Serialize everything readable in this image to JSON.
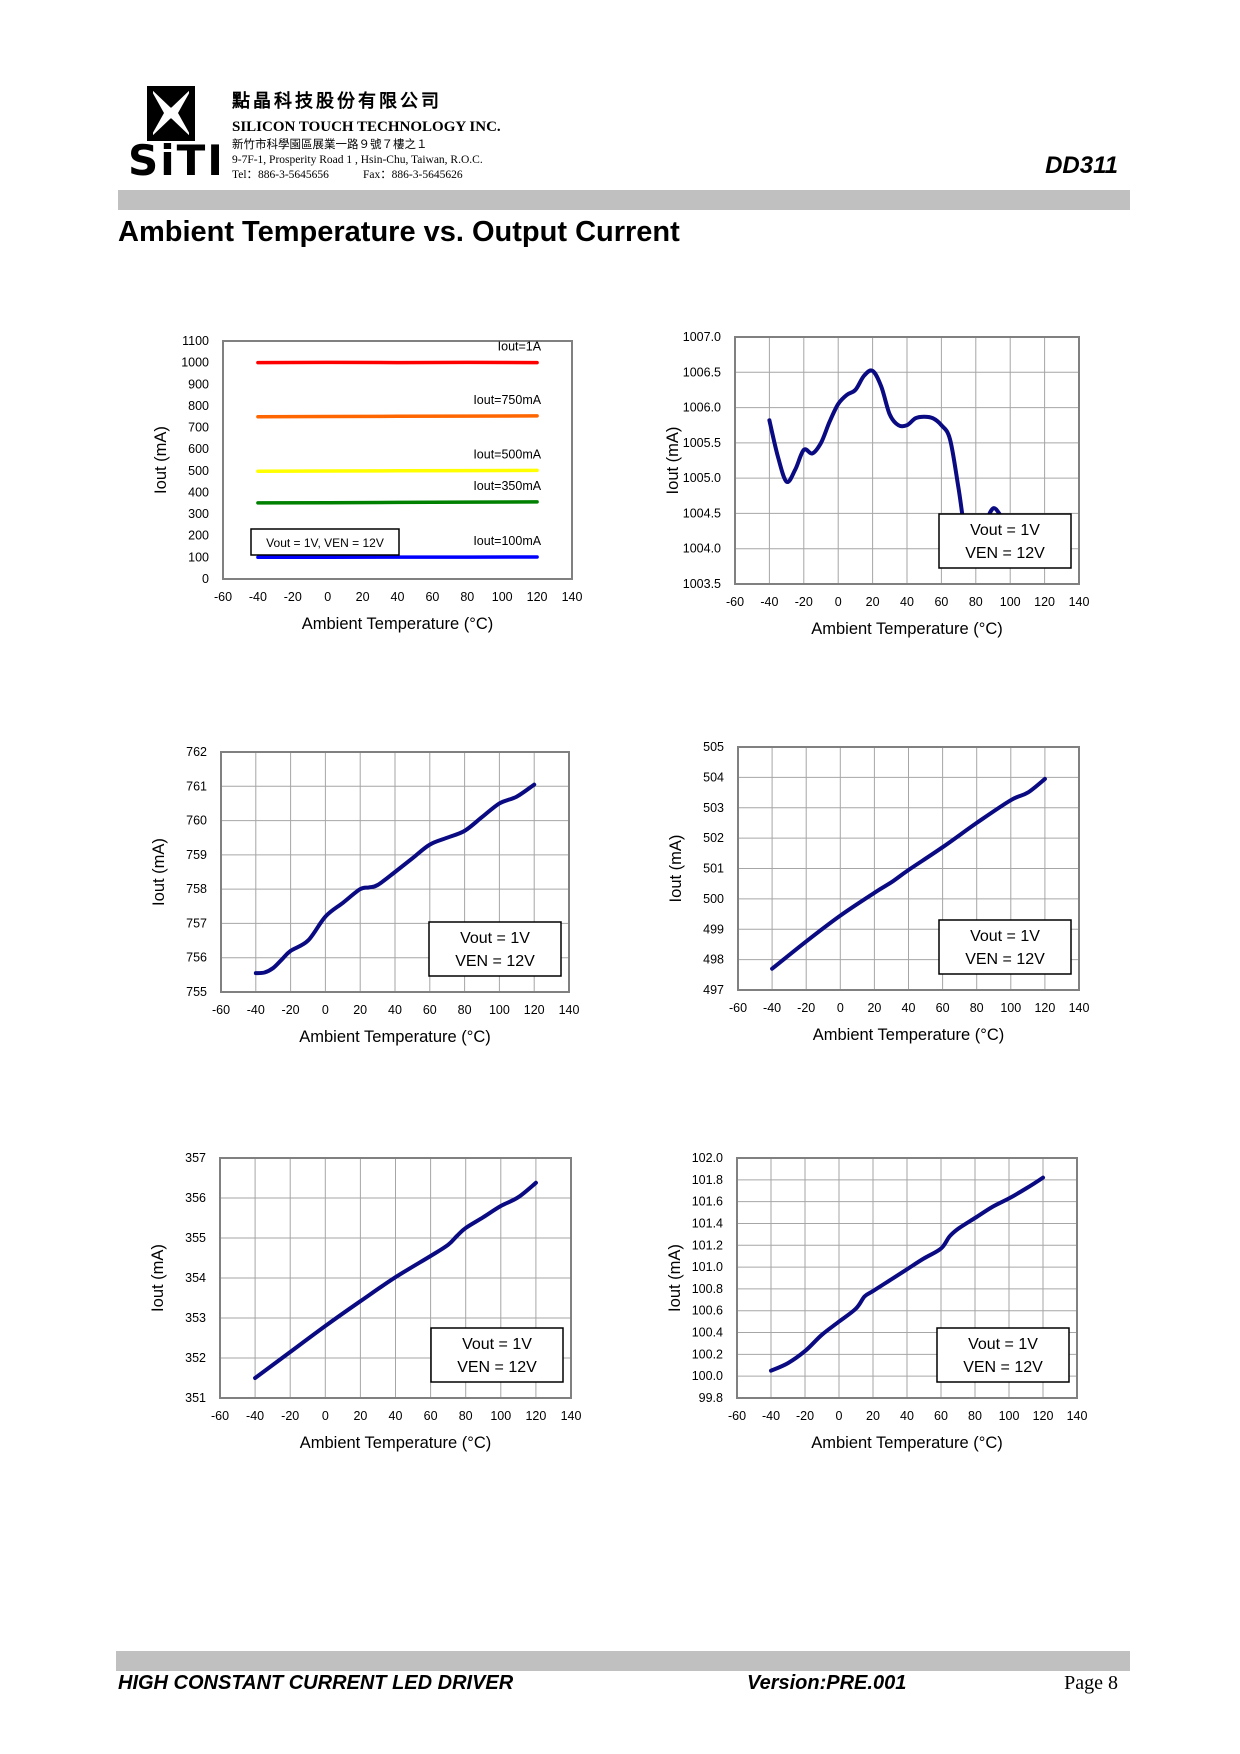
{
  "header": {
    "company_cn": "點晶科技股份有限公司",
    "company_en": "SILICON TOUCH TECHNOLOGY INC.",
    "address_cn": "新竹市科學園區展業一路９號７樓之１",
    "address_en": "9-7F-1, Prosperity Road 1 , Hsin-Chu, Taiwan, R.O.C.",
    "tel": "Tel：886-3-5645656",
    "fax": "Fax：886-3-5645626",
    "logo_text": "SiTI",
    "doc_id": "DD311"
  },
  "page_title": "Ambient Temperature vs. Output Current",
  "footer": {
    "product": "HIGH CONSTANT CURRENT LED DRIVER",
    "version": "Version:PRE.001",
    "page": "Page 8"
  },
  "colors": {
    "line": "#0a0a82",
    "grid": "#a6a6a6",
    "bar": "#c0c0c0",
    "iout_1a": "#ff0000",
    "iout_750": "#ff6600",
    "iout_500": "#ffff00",
    "iout_350": "#008000",
    "iout_100": "#0000ff"
  },
  "chart_data": [
    {
      "id": "all-currents",
      "type": "line",
      "xlabel": "Ambient Temperature (°C)",
      "ylabel": "Iout (mA)",
      "xlim": [
        -60,
        140
      ],
      "ylim": [
        0,
        1100
      ],
      "xticks": [
        -60,
        -40,
        -20,
        0,
        20,
        40,
        60,
        80,
        100,
        120,
        140
      ],
      "yticks": [
        0,
        100,
        200,
        300,
        400,
        500,
        600,
        700,
        800,
        900,
        1000,
        1100
      ],
      "ytick_labels": [
        "0",
        "100",
        "200",
        "300",
        "400",
        "500",
        "600",
        "700",
        "800",
        "900",
        "1000",
        "1100"
      ],
      "xgrid": false,
      "ygrid": false,
      "condition": [
        "Vout = 1V, VEN = 12V"
      ],
      "series": [
        {
          "name": "Iout=1A",
          "color": "#ff0000",
          "x": [
            -40,
            0,
            40,
            80,
            120
          ],
          "y": [
            1000,
            1001,
            1000,
            1001,
            1000
          ]
        },
        {
          "name": "Iout=750mA",
          "color": "#ff6600",
          "x": [
            -40,
            0,
            40,
            80,
            120
          ],
          "y": [
            750,
            751,
            752,
            753,
            754
          ]
        },
        {
          "name": "Iout=500mA",
          "color": "#ffff00",
          "x": [
            -40,
            0,
            40,
            80,
            120
          ],
          "y": [
            498,
            499,
            500,
            501,
            502
          ]
        },
        {
          "name": "Iout=350mA",
          "color": "#008000",
          "x": [
            -40,
            0,
            40,
            80,
            120
          ],
          "y": [
            351.5,
            352.8,
            354,
            355.3,
            356.3
          ]
        },
        {
          "name": "Iout=100mA",
          "color": "#0000ff",
          "x": [
            -40,
            0,
            40,
            80,
            120
          ],
          "y": [
            100.1,
            100.5,
            101,
            101.4,
            101.8
          ]
        }
      ]
    },
    {
      "id": "iout-1a",
      "type": "line",
      "xlabel": "Ambient Temperature (°C)",
      "ylabel": "Iout (mA)",
      "xlim": [
        -60,
        140
      ],
      "ylim": [
        1003.5,
        1007.0
      ],
      "xticks": [
        -60,
        -40,
        -20,
        0,
        20,
        40,
        60,
        80,
        100,
        120,
        140
      ],
      "yticks": [
        1003.5,
        1004.0,
        1004.5,
        1005.0,
        1005.5,
        1006.0,
        1006.5,
        1007.0
      ],
      "ytick_labels": [
        "1003.5",
        "1004.0",
        "1004.5",
        "1005.0",
        "1005.5",
        "1006.0",
        "1006.5",
        "1007.0"
      ],
      "xgrid": true,
      "ygrid": true,
      "condition": [
        "Vout = 1V",
        "VEN = 12V"
      ],
      "series": [
        {
          "x": [
            -40,
            -35,
            -30,
            -25,
            -20,
            -15,
            -10,
            -5,
            0,
            5,
            10,
            15,
            20,
            25,
            30,
            35,
            40,
            45,
            50,
            55,
            60,
            65,
            70,
            75,
            80,
            85,
            90,
            95,
            100,
            105,
            110,
            115,
            120
          ],
          "y": [
            1005.82,
            1005.3,
            1004.95,
            1005.12,
            1005.4,
            1005.35,
            1005.5,
            1005.8,
            1006.05,
            1006.18,
            1006.25,
            1006.45,
            1006.52,
            1006.3,
            1005.9,
            1005.75,
            1005.75,
            1005.85,
            1005.87,
            1005.85,
            1005.75,
            1005.55,
            1004.85,
            1004.05,
            1003.85,
            1004.3,
            1004.57,
            1004.45,
            1004.28,
            1004.25,
            1004.23,
            1004.1,
            1003.93
          ]
        }
      ]
    },
    {
      "id": "iout-750ma",
      "type": "line",
      "xlabel": "Ambient Temperature (°C)",
      "ylabel": "Iout (mA)",
      "xlim": [
        -60,
        140
      ],
      "ylim": [
        755,
        762
      ],
      "xticks": [
        -60,
        -40,
        -20,
        0,
        20,
        40,
        60,
        80,
        100,
        120,
        140
      ],
      "yticks": [
        755,
        756,
        757,
        758,
        759,
        760,
        761,
        762
      ],
      "ytick_labels": [
        "755",
        "756",
        "757",
        "758",
        "759",
        "760",
        "761",
        "762"
      ],
      "xgrid": true,
      "ygrid": true,
      "condition": [
        "Vout = 1V",
        "VEN = 12V"
      ],
      "series": [
        {
          "x": [
            -40,
            -35,
            -30,
            -25,
            -20,
            -10,
            0,
            10,
            20,
            25,
            30,
            40,
            50,
            60,
            70,
            80,
            90,
            100,
            110,
            120
          ],
          "y": [
            755.55,
            755.57,
            755.7,
            755.95,
            756.2,
            756.5,
            757.2,
            757.6,
            758.0,
            758.05,
            758.12,
            758.5,
            758.9,
            759.3,
            759.5,
            759.7,
            760.1,
            760.5,
            760.7,
            761.05
          ]
        }
      ]
    },
    {
      "id": "iout-500ma",
      "type": "line",
      "xlabel": "Ambient Temperature (°C)",
      "ylabel": "Iout (mA)",
      "xlim": [
        -60,
        140
      ],
      "ylim": [
        497,
        505
      ],
      "xticks": [
        -60,
        -40,
        -20,
        0,
        20,
        40,
        60,
        80,
        100,
        120,
        140
      ],
      "yticks": [
        497,
        498,
        499,
        500,
        501,
        502,
        503,
        504,
        505
      ],
      "ytick_labels": [
        "497",
        "498",
        "499",
        "500",
        "501",
        "502",
        "503",
        "504",
        "505"
      ],
      "xgrid": true,
      "ygrid": true,
      "condition": [
        "Vout = 1V",
        "VEN = 12V"
      ],
      "series": [
        {
          "x": [
            -40,
            -20,
            0,
            20,
            30,
            40,
            60,
            80,
            100,
            110,
            120
          ],
          "y": [
            497.7,
            498.6,
            499.45,
            500.2,
            500.55,
            500.95,
            501.7,
            502.5,
            503.25,
            503.5,
            503.95
          ]
        }
      ]
    },
    {
      "id": "iout-350ma",
      "type": "line",
      "xlabel": "Ambient Temperature (°C)",
      "ylabel": "Iout (mA)",
      "xlim": [
        -60,
        140
      ],
      "ylim": [
        351,
        357
      ],
      "xticks": [
        -60,
        -40,
        -20,
        0,
        20,
        40,
        60,
        80,
        100,
        120,
        140
      ],
      "yticks": [
        351,
        352,
        353,
        354,
        355,
        356,
        357
      ],
      "ytick_labels": [
        "351",
        "352",
        "353",
        "354",
        "355",
        "356",
        "357"
      ],
      "xgrid": true,
      "ygrid": true,
      "condition": [
        "Vout = 1V",
        "VEN = 12V"
      ],
      "series": [
        {
          "x": [
            -40,
            -20,
            0,
            20,
            40,
            60,
            70,
            75,
            80,
            90,
            100,
            110,
            120
          ],
          "y": [
            351.5,
            352.15,
            352.8,
            353.42,
            354.02,
            354.55,
            354.83,
            355.05,
            355.25,
            355.52,
            355.8,
            356.02,
            356.38
          ]
        }
      ]
    },
    {
      "id": "iout-100ma",
      "type": "line",
      "xlabel": "Ambient Temperature (°C)",
      "ylabel": "Iout (mA)",
      "xlim": [
        -60,
        140
      ],
      "ylim": [
        99.8,
        102.0
      ],
      "xticks": [
        -60,
        -40,
        -20,
        0,
        20,
        40,
        60,
        80,
        100,
        120,
        140
      ],
      "yticks": [
        99.8,
        100.0,
        100.2,
        100.4,
        100.6,
        100.8,
        101.0,
        101.2,
        101.4,
        101.6,
        101.8,
        102.0
      ],
      "ytick_labels": [
        "99.8",
        "100.0",
        "100.2",
        "100.4",
        "100.6",
        "100.8",
        "101.0",
        "101.2",
        "101.4",
        "101.6",
        "101.8",
        "102.0"
      ],
      "xgrid": true,
      "ygrid": true,
      "condition": [
        "Vout = 1V",
        "VEN = 12V"
      ],
      "series": [
        {
          "x": [
            -40,
            -30,
            -20,
            -10,
            0,
            10,
            15,
            20,
            30,
            40,
            50,
            60,
            65,
            70,
            80,
            90,
            100,
            110,
            120
          ],
          "y": [
            100.05,
            100.12,
            100.23,
            100.38,
            100.5,
            100.62,
            100.73,
            100.78,
            100.88,
            100.98,
            101.08,
            101.17,
            101.28,
            101.35,
            101.45,
            101.55,
            101.63,
            101.72,
            101.82
          ]
        }
      ]
    }
  ]
}
